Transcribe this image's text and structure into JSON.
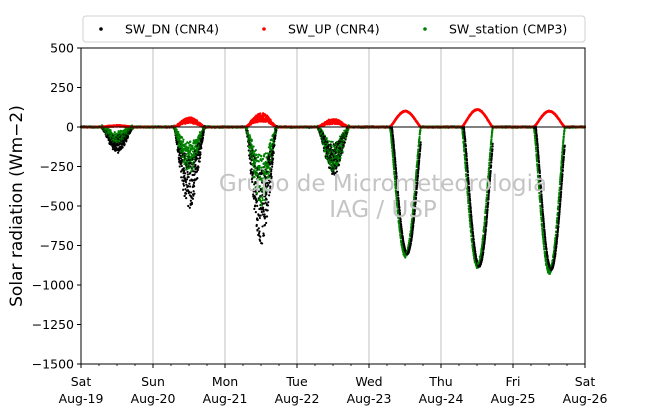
{
  "chart_data": {
    "type": "scatter",
    "title": "",
    "xlabel": "",
    "ylabel": "Solar radiation (Wm−2)",
    "ylim": [
      -1500,
      500
    ],
    "yticks": [
      500,
      250,
      0,
      -250,
      -500,
      -750,
      -1000,
      -1250,
      -1500
    ],
    "yticklabels": [
      "500",
      "250",
      "0",
      "−250",
      "−500",
      "−750",
      "−1000",
      "−1250",
      "−1500"
    ],
    "xlim": [
      0,
      7
    ],
    "xticks": [
      {
        "day": 0,
        "line1": "Sat",
        "line2": "Aug-19"
      },
      {
        "day": 1,
        "line1": "Sun",
        "line2": "Aug-20"
      },
      {
        "day": 2,
        "line1": "Mon",
        "line2": "Aug-21"
      },
      {
        "day": 3,
        "line1": "Tue",
        "line2": "Aug-22"
      },
      {
        "day": 4,
        "line1": "Wed",
        "line2": "Aug-23"
      },
      {
        "day": 5,
        "line1": "Thu",
        "line2": "Aug-24"
      },
      {
        "day": 6,
        "line1": "Fri",
        "line2": "Aug-25"
      },
      {
        "day": 7,
        "line1": "Sat",
        "line2": "Aug-26"
      }
    ],
    "grid_x": true,
    "legend": {
      "placement": "top",
      "entries": [
        {
          "label": "SW_DN (CNR4)",
          "color": "#000000"
        },
        {
          "label": "SW_UP (CNR4)",
          "color": "#ff0000"
        },
        {
          "label": "SW_station (CMP3)",
          "color": "#008000"
        }
      ]
    },
    "series": [
      {
        "name": "SW_DN (CNR4)",
        "color": "#000000",
        "daily_minimum": [
          -160,
          -520,
          -740,
          -300,
          -800,
          -880,
          -900
        ]
      },
      {
        "name": "SW_UP (CNR4)",
        "color": "#ff0000",
        "daily_maximum": [
          10,
          60,
          90,
          50,
          100,
          110,
          100
        ]
      },
      {
        "name": "SW_station (CMP3)",
        "color": "#008000",
        "daily_minimum": [
          -100,
          -280,
          -500,
          -280,
          -820,
          -890,
          -930
        ]
      }
    ],
    "watermark": [
      "Grupo de Micrometeorologia",
      "IAG / USP"
    ]
  }
}
